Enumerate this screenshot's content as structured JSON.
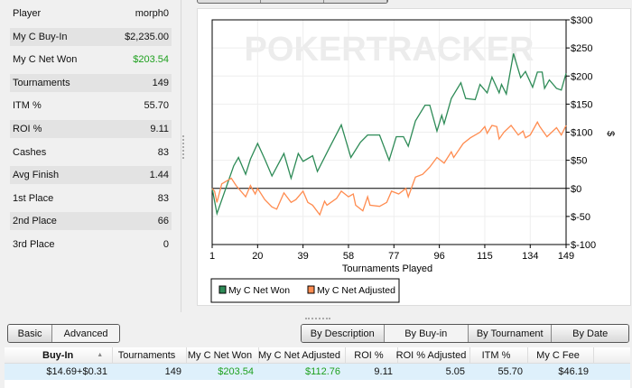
{
  "stats": [
    {
      "label": "Player",
      "value": "morph0"
    },
    {
      "label": "My C Buy-In",
      "value": "$2,235.00"
    },
    {
      "label": "My C Net Won",
      "value": "$203.54",
      "color": "#1ea01e"
    },
    {
      "label": "Tournaments",
      "value": "149"
    },
    {
      "label": "ITM %",
      "value": "55.70"
    },
    {
      "label": "ROI %",
      "value": "9.11"
    },
    {
      "label": "Cashes",
      "value": "83"
    },
    {
      "label": "Avg Finish",
      "value": "1.44"
    },
    {
      "label": "1st Place",
      "value": "83"
    },
    {
      "label": "2nd Place",
      "value": "66"
    },
    {
      "label": "3rd Place",
      "value": "0"
    }
  ],
  "watermark": "POKERTRACKER",
  "chart_data": {
    "type": "line",
    "xlabel": "Tournaments Played",
    "ylabel": "$",
    "xlim": [
      1,
      149
    ],
    "ylim": [
      -100,
      300
    ],
    "xticks": [
      "1",
      "20",
      "39",
      "58",
      "77",
      "96",
      "115",
      "134",
      "149"
    ],
    "xtick_values": [
      1,
      20,
      39,
      58,
      77,
      96,
      115,
      134,
      149
    ],
    "yticks": [
      "$300",
      "$250",
      "$200",
      "$150",
      "$100",
      "$50",
      "$0",
      "$-50",
      "$-100"
    ],
    "ytick_values": [
      300,
      250,
      200,
      150,
      100,
      50,
      0,
      -50,
      -100
    ],
    "grid": true,
    "legend_placement": "bottom-left",
    "series": [
      {
        "name": "My C Net Won",
        "color": "#2e8b57",
        "points": [
          [
            1,
            0
          ],
          [
            3,
            -45
          ],
          [
            10,
            40
          ],
          [
            12,
            55
          ],
          [
            15,
            25
          ],
          [
            17,
            52
          ],
          [
            20,
            80
          ],
          [
            23,
            52
          ],
          [
            26,
            22
          ],
          [
            31,
            62
          ],
          [
            34,
            18
          ],
          [
            37,
            62
          ],
          [
            39,
            48
          ],
          [
            43,
            58
          ],
          [
            45,
            30
          ],
          [
            50,
            72
          ],
          [
            55,
            113
          ],
          [
            59,
            55
          ],
          [
            63,
            82
          ],
          [
            66,
            95
          ],
          [
            71,
            95
          ],
          [
            75,
            50
          ],
          [
            78,
            92
          ],
          [
            81,
            92
          ],
          [
            83,
            75
          ],
          [
            86,
            120
          ],
          [
            90,
            148
          ],
          [
            92,
            148
          ],
          [
            95,
            102
          ],
          [
            97,
            130
          ],
          [
            98,
            115
          ],
          [
            101,
            160
          ],
          [
            105,
            188
          ],
          [
            107,
            160
          ],
          [
            111,
            158
          ],
          [
            113,
            185
          ],
          [
            116,
            170
          ],
          [
            118,
            198
          ],
          [
            121,
            170
          ],
          [
            122,
            185
          ],
          [
            124,
            168
          ],
          [
            127,
            240
          ],
          [
            130,
            197
          ],
          [
            132,
            208
          ],
          [
            135,
            180
          ],
          [
            137,
            207
          ],
          [
            139,
            207
          ],
          [
            140,
            178
          ],
          [
            142,
            193
          ],
          [
            145,
            178
          ],
          [
            147,
            175
          ],
          [
            149,
            205
          ]
        ]
      },
      {
        "name": "My C Net Adjusted",
        "color": "#ff8c50",
        "points": [
          [
            1,
            0
          ],
          [
            2,
            -5
          ],
          [
            3,
            -25
          ],
          [
            5,
            8
          ],
          [
            9,
            18
          ],
          [
            11,
            5
          ],
          [
            15,
            -15
          ],
          [
            17,
            5
          ],
          [
            19,
            -10
          ],
          [
            20,
            0
          ],
          [
            23,
            -20
          ],
          [
            26,
            -33
          ],
          [
            28,
            -37
          ],
          [
            31,
            -8
          ],
          [
            34,
            -25
          ],
          [
            36,
            -20
          ],
          [
            39,
            -5
          ],
          [
            41,
            -25
          ],
          [
            43,
            -30
          ],
          [
            46,
            -47
          ],
          [
            48,
            -23
          ],
          [
            49,
            -30
          ],
          [
            53,
            -18
          ],
          [
            55,
            -5
          ],
          [
            58,
            -15
          ],
          [
            60,
            -10
          ],
          [
            61,
            -30
          ],
          [
            64,
            -40
          ],
          [
            66,
            -15
          ],
          [
            67,
            -30
          ],
          [
            71,
            -32
          ],
          [
            74,
            -25
          ],
          [
            76,
            -5
          ],
          [
            79,
            -10
          ],
          [
            82,
            0
          ],
          [
            83,
            -15
          ],
          [
            86,
            20
          ],
          [
            89,
            25
          ],
          [
            92,
            38
          ],
          [
            95,
            55
          ],
          [
            98,
            45
          ],
          [
            101,
            65
          ],
          [
            102,
            55
          ],
          [
            106,
            80
          ],
          [
            109,
            90
          ],
          [
            113,
            100
          ],
          [
            115,
            110
          ],
          [
            116,
            98
          ],
          [
            118,
            112
          ],
          [
            120,
            110
          ],
          [
            121,
            88
          ],
          [
            123,
            100
          ],
          [
            126,
            112
          ],
          [
            129,
            95
          ],
          [
            131,
            102
          ],
          [
            132,
            90
          ],
          [
            134,
            95
          ],
          [
            137,
            118
          ],
          [
            138,
            110
          ],
          [
            141,
            92
          ],
          [
            145,
            108
          ],
          [
            147,
            95
          ],
          [
            149,
            112
          ]
        ]
      }
    ]
  },
  "view_buttons": [
    "Basic",
    "Advanced"
  ],
  "group_buttons": [
    "By Description",
    "By Buy-in",
    "By Tournament",
    "By Date"
  ],
  "table": {
    "columns": [
      "Buy-In",
      "Tournaments",
      "My C Net Won",
      "My C Net Adjusted",
      "ROI %",
      "ROI % Adjusted",
      "ITM %",
      "My C Fee"
    ],
    "sort_column": "Buy-In",
    "rows": [
      [
        "$14.69+$0.31",
        "149",
        "$203.54",
        "$112.76",
        "9.11",
        "5.05",
        "55.70",
        "$46.19"
      ]
    ]
  }
}
